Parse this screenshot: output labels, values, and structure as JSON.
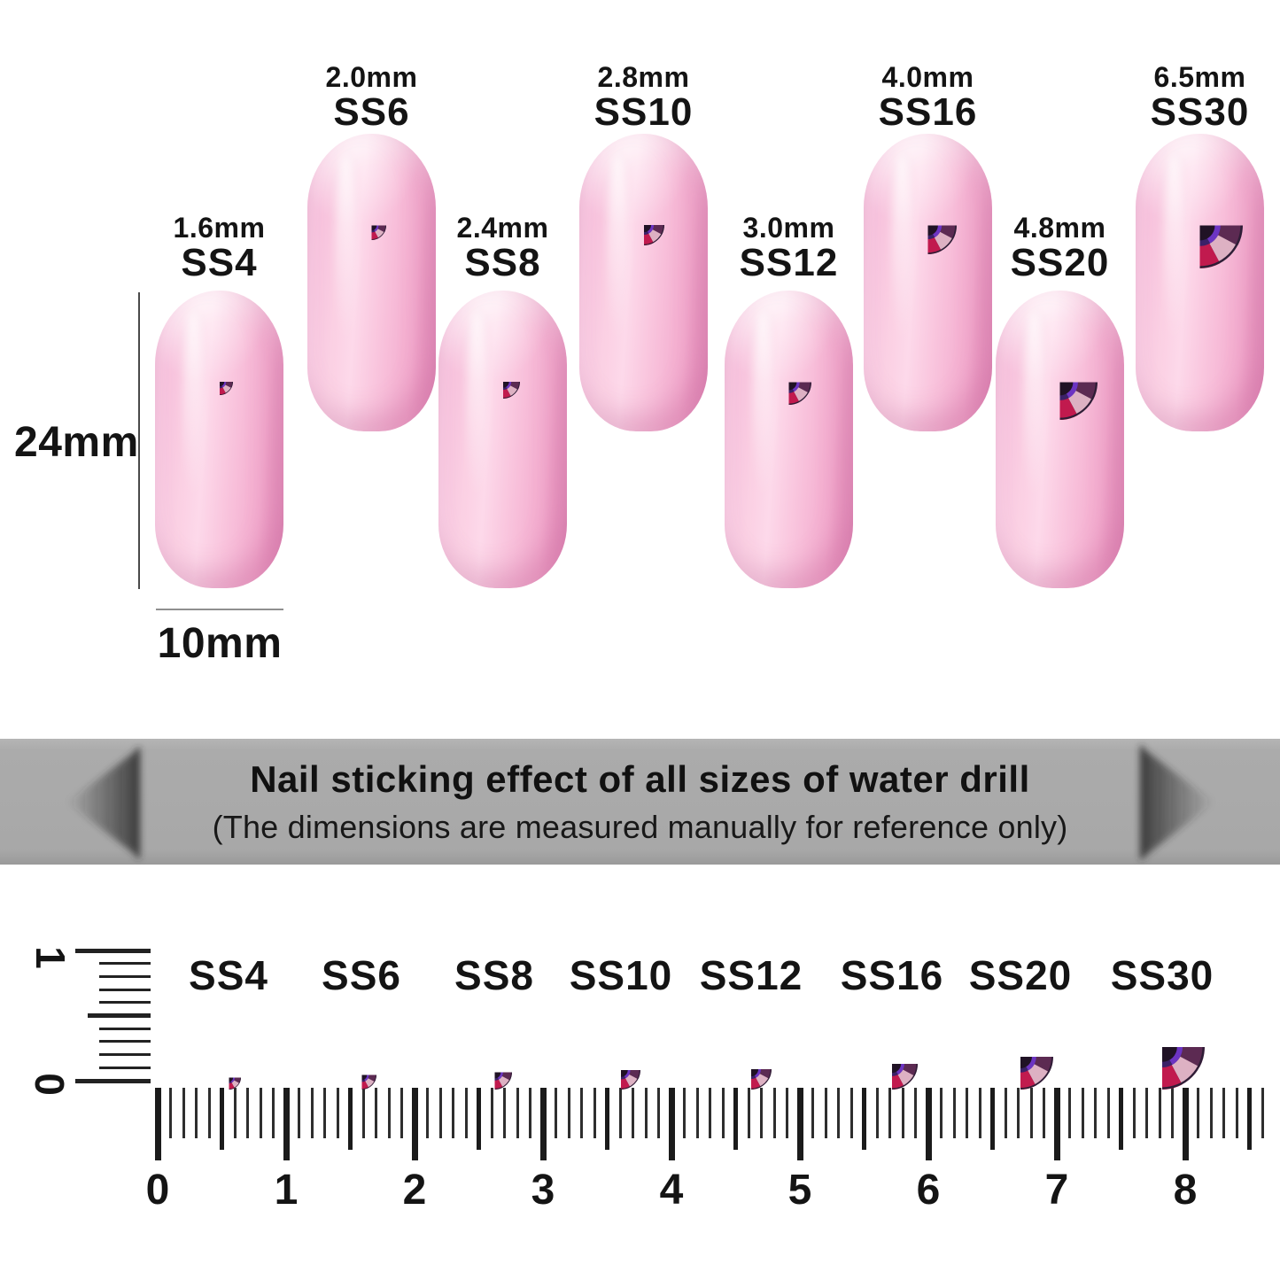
{
  "nail_diagram": {
    "height_label": "24mm",
    "width_label": "10mm",
    "nails": [
      {
        "ss_label": "SS4",
        "size_label": "1.6mm"
      },
      {
        "ss_label": "SS6",
        "size_label": "2.0mm"
      },
      {
        "ss_label": "SS8",
        "size_label": "2.4mm"
      },
      {
        "ss_label": "SS10",
        "size_label": "2.8mm"
      },
      {
        "ss_label": "SS12",
        "size_label": "3.0mm"
      },
      {
        "ss_label": "SS16",
        "size_label": "4.0mm"
      },
      {
        "ss_label": "SS20",
        "size_label": "4.8mm"
      },
      {
        "ss_label": "SS30",
        "size_label": "6.5mm"
      }
    ]
  },
  "banner": {
    "title": "Nail sticking effect of all sizes of water drill",
    "subtitle": "(The dimensions are measured manually for reference only)"
  },
  "size_ruler": {
    "tick_numbers": [
      "0",
      "1",
      "2",
      "3",
      "4",
      "5",
      "6",
      "7",
      "8"
    ],
    "vertical_tick_numbers": [
      "1",
      "0"
    ],
    "gem_labels": [
      "SS4",
      "SS6",
      "SS8",
      "SS10",
      "SS12",
      "SS16",
      "SS20",
      "SS30"
    ]
  },
  "colors": {
    "nail_pink": "#f8c0db",
    "banner_gray": "#a8a8a8",
    "gem_purple": "#5f4a66",
    "gem_violet": "#6c34c2",
    "gem_crimson": "#c11a4e",
    "gem_highlight_pink": "#ddb1c3",
    "text": "#141414"
  }
}
